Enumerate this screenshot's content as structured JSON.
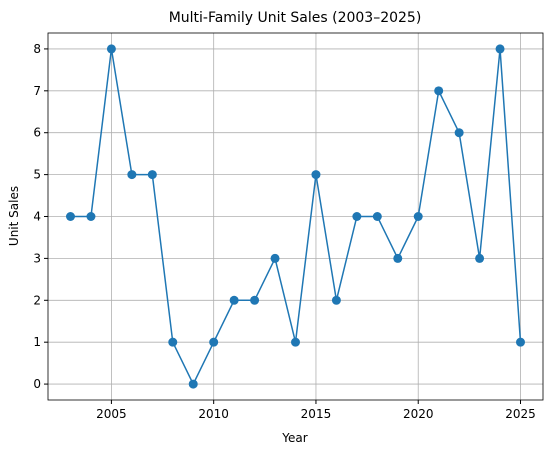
{
  "chart_data": {
    "type": "line",
    "title": "Multi-Family Unit Sales (2003–2025)",
    "x_label": "Year",
    "y_label": "Unit Sales",
    "x": [
      2003,
      2004,
      2005,
      2006,
      2007,
      2008,
      2009,
      2010,
      2011,
      2012,
      2013,
      2014,
      2015,
      2016,
      2017,
      2018,
      2019,
      2020,
      2021,
      2022,
      2023,
      2024,
      2025
    ],
    "series": [
      {
        "name": "Unit Sales",
        "color": "#1f77b4",
        "values": [
          4,
          4,
          8,
          5,
          5,
          1,
          0,
          1,
          2,
          2,
          3,
          1,
          5,
          2,
          4,
          4,
          3,
          4,
          7,
          6,
          3,
          8,
          1
        ]
      }
    ],
    "xlim": [
      2001.9,
      2026.1
    ],
    "xticks": [
      2005,
      2010,
      2015,
      2020,
      2025
    ],
    "ylim": [
      -0.38,
      8.38
    ],
    "yticks": [
      0,
      1,
      2,
      3,
      4,
      5,
      6,
      7,
      8
    ],
    "grid": true
  }
}
